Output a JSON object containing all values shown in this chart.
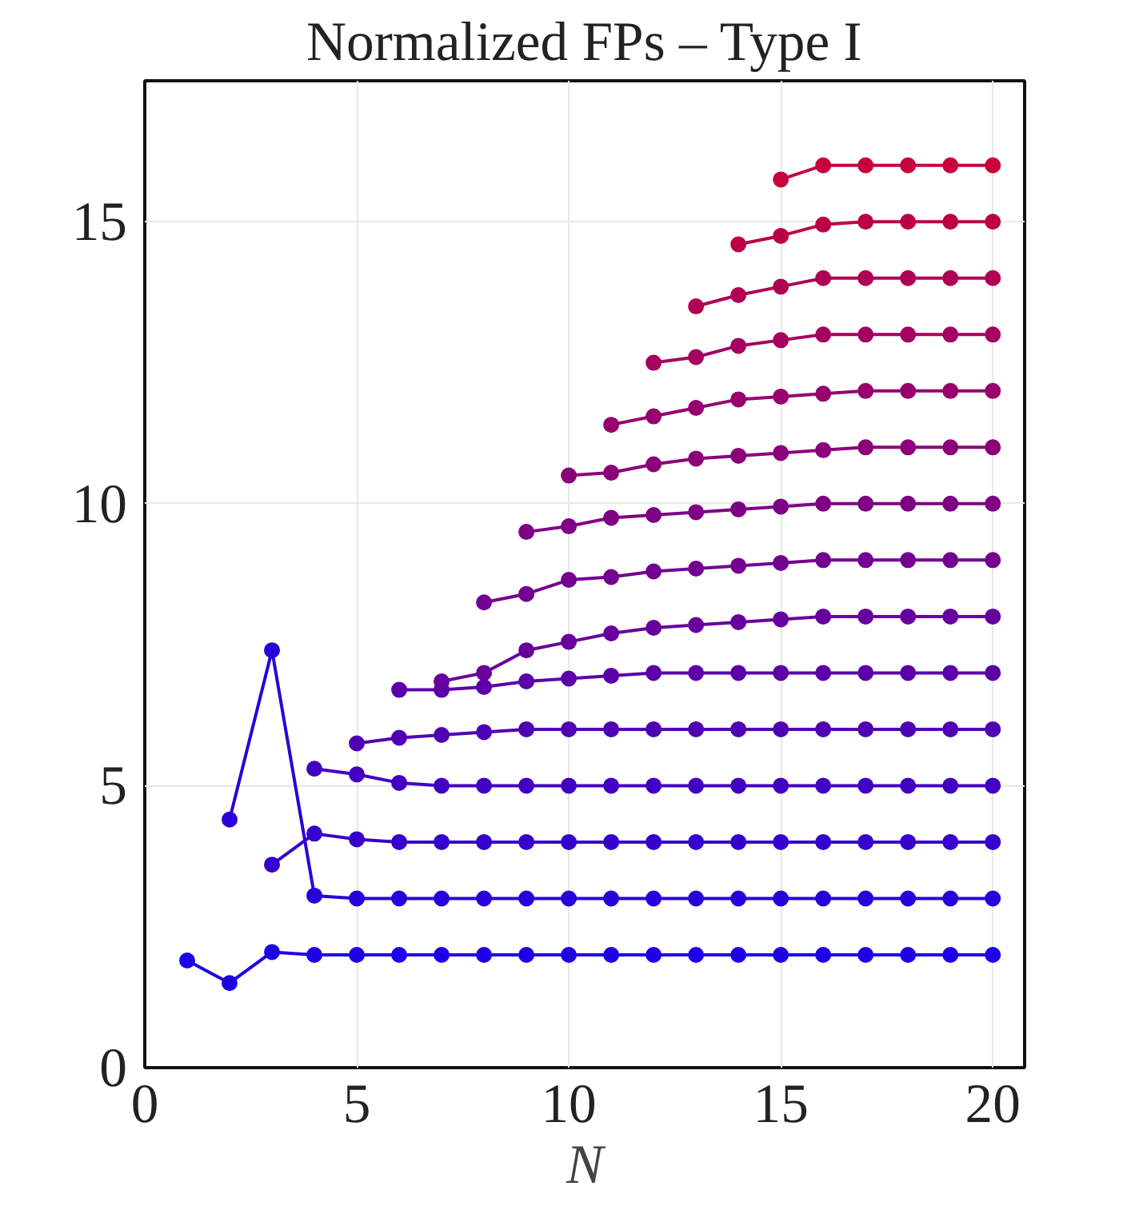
{
  "chart_data": {
    "type": "line",
    "title": "Normalized FPs – Type I",
    "xlabel": "N",
    "xlim": [
      0,
      20.75
    ],
    "ylim": [
      0,
      17.5
    ],
    "xticks": [
      0,
      5,
      10,
      15,
      20
    ],
    "yticks": [
      0,
      5,
      10,
      15
    ],
    "grid": true,
    "marker": "circle",
    "line_style": "solid",
    "series": [
      {
        "color": "#1e00e6",
        "x": [
          1,
          2,
          3,
          4,
          5,
          6,
          7,
          8,
          9,
          10,
          11,
          12,
          13,
          14,
          15,
          16,
          17,
          18,
          19,
          20
        ],
        "values": [
          1.9,
          1.5,
          2.05,
          2,
          2,
          2,
          2,
          2,
          2,
          2,
          2,
          2,
          2,
          2,
          2,
          2,
          2,
          2,
          2,
          2
        ]
      },
      {
        "color": "#2a00da",
        "x": [
          2,
          3,
          4,
          5,
          6,
          7,
          8,
          9,
          10,
          11,
          12,
          13,
          14,
          15,
          16,
          17,
          18,
          19,
          20
        ],
        "values": [
          4.4,
          7.4,
          3.05,
          3,
          3,
          3,
          3,
          3,
          3,
          3,
          3,
          3,
          3,
          3,
          3,
          3,
          3,
          3,
          3
        ]
      },
      {
        "color": "#3600ce",
        "x": [
          3,
          4,
          5,
          6,
          7,
          8,
          9,
          10,
          11,
          12,
          13,
          14,
          15,
          16,
          17,
          18,
          19,
          20
        ],
        "values": [
          3.6,
          4.15,
          4.05,
          4,
          4,
          4,
          4,
          4,
          4,
          4,
          4,
          4,
          4,
          4,
          4,
          4,
          4,
          4
        ]
      },
      {
        "color": "#4200c2",
        "x": [
          4,
          5,
          6,
          7,
          8,
          9,
          10,
          11,
          12,
          13,
          14,
          15,
          16,
          17,
          18,
          19,
          20
        ],
        "values": [
          5.3,
          5.2,
          5.05,
          5,
          5,
          5,
          5,
          5,
          5,
          5,
          5,
          5,
          5,
          5,
          5,
          5,
          5
        ]
      },
      {
        "color": "#4f00b5",
        "x": [
          5,
          6,
          7,
          8,
          9,
          10,
          11,
          12,
          13,
          14,
          15,
          16,
          17,
          18,
          19,
          20
        ],
        "values": [
          5.75,
          5.85,
          5.9,
          5.95,
          6,
          6,
          6,
          6,
          6,
          6,
          6,
          6,
          6,
          6,
          6,
          6
        ]
      },
      {
        "color": "#5b00a9",
        "x": [
          6,
          7,
          8,
          9,
          10,
          11,
          12,
          13,
          14,
          15,
          16,
          17,
          18,
          19,
          20
        ],
        "values": [
          6.7,
          6.7,
          6.75,
          6.85,
          6.9,
          6.95,
          7,
          7,
          7,
          7,
          7,
          7,
          7,
          7,
          7
        ]
      },
      {
        "color": "#67009d",
        "x": [
          7,
          8,
          9,
          10,
          11,
          12,
          13,
          14,
          15,
          16,
          17,
          18,
          19,
          20
        ],
        "values": [
          6.85,
          7.0,
          7.4,
          7.55,
          7.7,
          7.8,
          7.85,
          7.9,
          7.95,
          8,
          8,
          8,
          8,
          8
        ]
      },
      {
        "color": "#730091",
        "x": [
          8,
          9,
          10,
          11,
          12,
          13,
          14,
          15,
          16,
          17,
          18,
          19,
          20
        ],
        "values": [
          8.25,
          8.4,
          8.65,
          8.7,
          8.8,
          8.85,
          8.9,
          8.95,
          9,
          9,
          9,
          9,
          9
        ]
      },
      {
        "color": "#7f0085",
        "x": [
          9,
          10,
          11,
          12,
          13,
          14,
          15,
          16,
          17,
          18,
          19,
          20
        ],
        "values": [
          9.5,
          9.6,
          9.75,
          9.8,
          9.85,
          9.9,
          9.95,
          10,
          10,
          10,
          10,
          10
        ]
      },
      {
        "color": "#8b0079",
        "x": [
          10,
          11,
          12,
          13,
          14,
          15,
          16,
          17,
          18,
          19,
          20
        ],
        "values": [
          10.5,
          10.55,
          10.7,
          10.8,
          10.85,
          10.9,
          10.95,
          11,
          11,
          11,
          11
        ]
      },
      {
        "color": "#97006d",
        "x": [
          11,
          12,
          13,
          14,
          15,
          16,
          17,
          18,
          19,
          20
        ],
        "values": [
          11.4,
          11.55,
          11.7,
          11.85,
          11.9,
          11.95,
          12,
          12,
          12,
          12
        ]
      },
      {
        "color": "#a40060",
        "x": [
          12,
          13,
          14,
          15,
          16,
          17,
          18,
          19,
          20
        ],
        "values": [
          12.5,
          12.6,
          12.8,
          12.9,
          13,
          13,
          13,
          13,
          13
        ]
      },
      {
        "color": "#b00054",
        "x": [
          13,
          14,
          15,
          16,
          17,
          18,
          19,
          20
        ],
        "values": [
          13.5,
          13.7,
          13.85,
          14,
          14,
          14,
          14,
          14
        ]
      },
      {
        "color": "#bc0048",
        "x": [
          14,
          15,
          16,
          17,
          18,
          19,
          20
        ],
        "values": [
          14.6,
          14.75,
          14.95,
          15,
          15,
          15,
          15
        ]
      },
      {
        "color": "#c8003c",
        "x": [
          15,
          16,
          17,
          18,
          19,
          20
        ],
        "values": [
          15.75,
          16,
          16,
          16,
          16,
          16
        ]
      }
    ]
  }
}
